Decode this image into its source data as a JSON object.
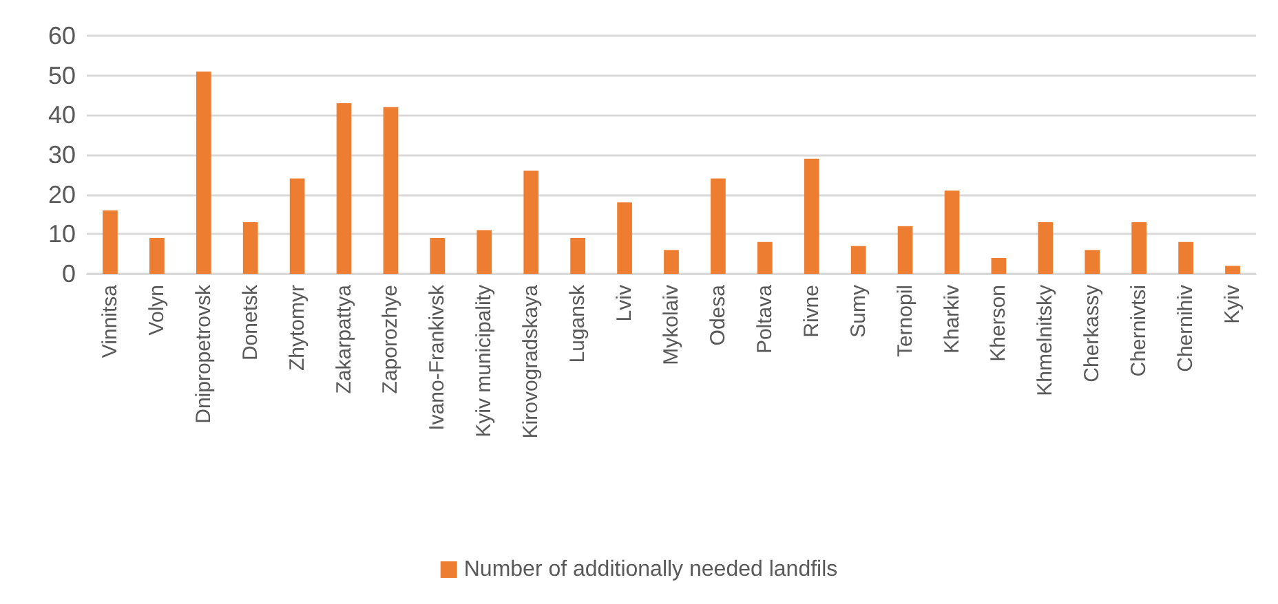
{
  "chart_data": {
    "type": "bar",
    "categories": [
      "Vinnitsa",
      "Volyn",
      "Dnipropetrovsk",
      "Donetsk",
      "Zhytomyr",
      "Zakarpattya",
      "Zaporozhye",
      "Ivano-Frankivsk",
      "Kyiv municipality",
      "Kirovogradskaya",
      "Lugansk",
      "Lviv",
      "Mykolaiv",
      "Odesa",
      "Poltava",
      "Rivne",
      "Sumy",
      "Ternopil",
      "Kharkiv",
      "Kherson",
      "Khmelnitsky",
      "Cherkassy",
      "Chernivtsi",
      "Chernihiv",
      "Kyiv"
    ],
    "series": [
      {
        "name": "Number of additionally needed landfils",
        "color": "#ed7d31",
        "values": [
          16,
          9,
          51,
          13,
          24,
          43,
          42,
          9,
          11,
          26,
          9,
          18,
          6,
          24,
          8,
          29,
          7,
          12,
          21,
          4,
          13,
          6,
          13,
          8,
          2
        ]
      }
    ],
    "ylim": [
      0,
      60
    ],
    "yticks": [
      0,
      10,
      20,
      30,
      40,
      50,
      60
    ],
    "grid": "y",
    "legend": "bottom"
  }
}
